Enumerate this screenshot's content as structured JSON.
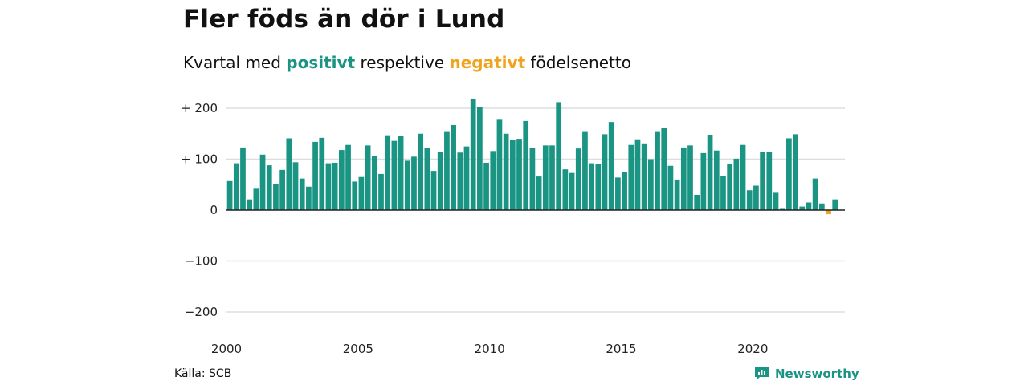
{
  "header": {
    "title": "Fler föds än dör i Lund",
    "subtitle_part1": "Kvartal med",
    "subtitle_positive": "positivt",
    "subtitle_part2": "respektive",
    "subtitle_negative": "negativt",
    "subtitle_part3": "födelsenetto"
  },
  "footer": {
    "source": "Källa: SCB",
    "brand": "Newsworthy"
  },
  "colors": {
    "positive": "#1a9583",
    "negative": "#f0a31c",
    "grid": "#dddddd"
  },
  "chart_data": {
    "type": "bar",
    "title": "Fler föds än dör i Lund",
    "ylim": [
      -200,
      200
    ],
    "xlim": [
      2000,
      2023.5
    ],
    "grid": true,
    "y_ticks": [
      200,
      100,
      0,
      -100,
      -200
    ],
    "y_tick_labels": [
      "+ 200",
      "+ 100",
      "0",
      "−100",
      "−200"
    ],
    "x_ticks": [
      2000,
      2005,
      2010,
      2015,
      2020
    ],
    "x_tick_labels": [
      "2000",
      "2005",
      "2010",
      "2015",
      "2020"
    ],
    "start_year": 2000,
    "periods_per_year": 4,
    "values": [
      57,
      92,
      123,
      21,
      42,
      109,
      88,
      52,
      79,
      141,
      94,
      62,
      46,
      134,
      142,
      92,
      93,
      118,
      128,
      56,
      65,
      127,
      107,
      71,
      147,
      136,
      146,
      97,
      105,
      150,
      122,
      77,
      115,
      155,
      167,
      113,
      125,
      219,
      203,
      93,
      116,
      179,
      150,
      137,
      140,
      175,
      122,
      66,
      127,
      127,
      212,
      80,
      73,
      121,
      155,
      92,
      90,
      149,
      173,
      64,
      75,
      128,
      139,
      131,
      100,
      155,
      161,
      87,
      60,
      123,
      127,
      30,
      112,
      148,
      117,
      67,
      91,
      101,
      128,
      39,
      48,
      115,
      115,
      34,
      4,
      141,
      149,
      7,
      15,
      62,
      13,
      -8,
      21
    ]
  }
}
